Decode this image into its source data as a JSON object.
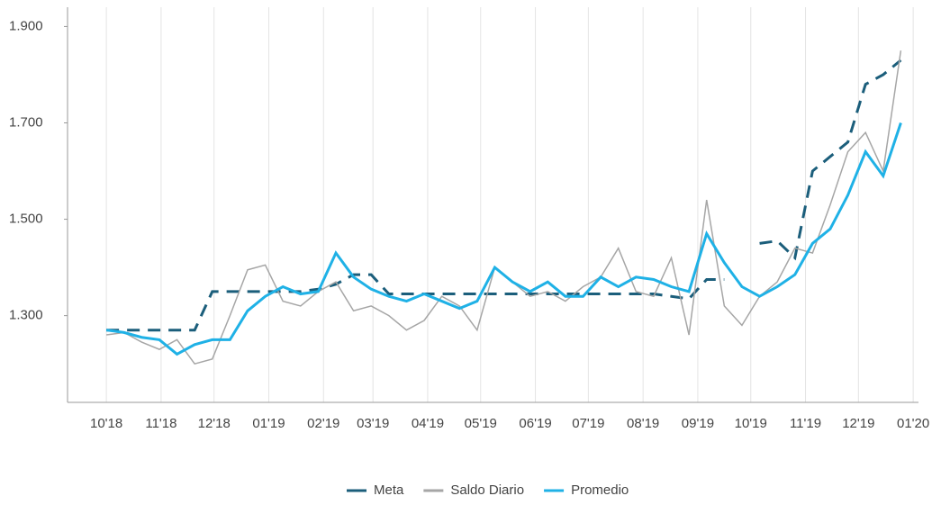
{
  "chart_data": {
    "type": "line",
    "x": [
      0,
      10,
      20,
      30,
      40,
      50,
      60,
      70,
      80,
      90,
      100,
      110,
      120,
      130,
      140,
      150,
      160,
      170,
      180,
      190,
      200,
      210,
      220,
      230,
      240,
      250,
      260,
      270,
      280,
      290,
      300,
      310,
      320,
      330,
      340,
      350,
      360,
      370,
      380,
      390,
      400,
      410,
      420,
      430,
      440,
      450
    ],
    "series": [
      {
        "name": "Meta",
        "color": "#1b5e7b",
        "dashed": true,
        "values": [
          1270,
          1270,
          1270,
          1270,
          1270,
          1270,
          1350,
          1350,
          1350,
          1350,
          1350,
          1350,
          1355,
          1365,
          1385,
          1385,
          1345,
          1345,
          1345,
          1345,
          1345,
          1345,
          1345,
          1345,
          1345,
          1345,
          1345,
          1345,
          1345,
          1345,
          1345,
          1345,
          1340,
          1335,
          1375,
          1375,
          null,
          1450,
          1455,
          1420,
          1600,
          1630,
          1660,
          1780,
          1800,
          1830
        ]
      },
      {
        "name": "Saldo Diario",
        "color": "#a6a6a6",
        "values": [
          1260,
          1265,
          1245,
          1230,
          1250,
          1200,
          1210,
          1300,
          1395,
          1405,
          1330,
          1320,
          1350,
          1370,
          1310,
          1320,
          1300,
          1270,
          1290,
          1340,
          1320,
          1270,
          1400,
          1370,
          1340,
          1350,
          1330,
          1360,
          1380,
          1440,
          1350,
          1340,
          1420,
          1260,
          1540,
          1320,
          1280,
          1340,
          1370,
          1440,
          1430,
          1530,
          1640,
          1680,
          1600,
          1850
        ]
      },
      {
        "name": "Promedio",
        "color": "#1fb1e6",
        "values": [
          1270,
          1265,
          1255,
          1250,
          1220,
          1240,
          1250,
          1250,
          1310,
          1340,
          1360,
          1345,
          1350,
          1430,
          1380,
          1355,
          1340,
          1330,
          1345,
          1330,
          1315,
          1330,
          1400,
          1370,
          1350,
          1370,
          1340,
          1340,
          1380,
          1360,
          1380,
          1375,
          1360,
          1350,
          1470,
          1410,
          1360,
          1340,
          1360,
          1385,
          1450,
          1480,
          1550,
          1640,
          1590,
          1700
        ]
      }
    ],
    "xlim": [
      -22,
      460
    ],
    "xticks": [
      {
        "value": 0,
        "label": "10'18"
      },
      {
        "value": 31,
        "label": "11'18"
      },
      {
        "value": 61,
        "label": "12'18"
      },
      {
        "value": 92,
        "label": "01'19"
      },
      {
        "value": 123,
        "label": "02'19"
      },
      {
        "value": 151,
        "label": "03'19"
      },
      {
        "value": 182,
        "label": "04'19"
      },
      {
        "value": 212,
        "label": "05'19"
      },
      {
        "value": 243,
        "label": "06'19"
      },
      {
        "value": 273,
        "label": "07'19"
      },
      {
        "value": 304,
        "label": "08'19"
      },
      {
        "value": 335,
        "label": "09'19"
      },
      {
        "value": 365,
        "label": "10'19"
      },
      {
        "value": 396,
        "label": "11'19"
      },
      {
        "value": 426,
        "label": "12'19"
      },
      {
        "value": 457,
        "label": "01'20"
      }
    ],
    "ylim": [
      1120,
      1940
    ],
    "yticks": [
      {
        "value": 1300,
        "label": "1.300"
      },
      {
        "value": 1500,
        "label": "1.500"
      },
      {
        "value": 1700,
        "label": "1.700"
      },
      {
        "value": 1900,
        "label": "1.900"
      }
    ],
    "grid": "x",
    "legend": "bottom"
  }
}
